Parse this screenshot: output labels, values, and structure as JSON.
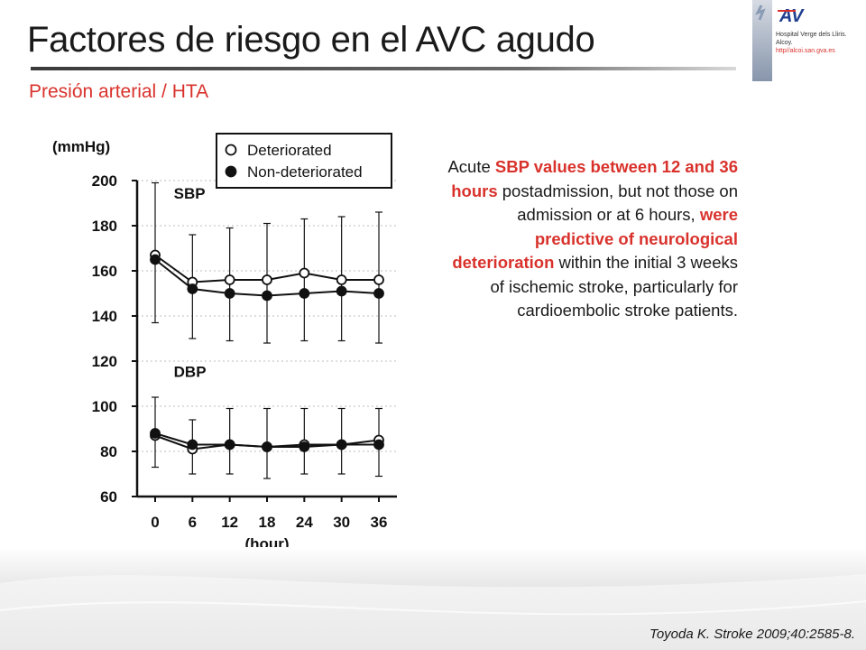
{
  "slide": {
    "title": "Factores de riesgo en el AVC agudo",
    "subtitle": "Presión arterial / HTA",
    "logo": {
      "line1": "Hospital Verge dels Lliris.",
      "line2": "Alcoy.",
      "url": "http//alcoi.san.gva.es"
    },
    "description": [
      {
        "text": "Acute ",
        "highlight": false
      },
      {
        "text": "SBP values between 12 and 36 hours",
        "highlight": true
      },
      {
        "text": " postadmission, but not those on admission or at 6 hours, ",
        "highlight": false
      },
      {
        "text": "were predictive of neurological deterioration",
        "highlight": true
      },
      {
        "text": " within the initial 3 weeks of ischemic stroke, particularly for cardioembolic stroke patients.",
        "highlight": false
      }
    ],
    "citation": "Toyoda K. Stroke 2009;40:2585-8.",
    "colors": {
      "accent": "#d9322c",
      "text": "#1a1a1a"
    }
  },
  "chart_data": {
    "type": "line",
    "x": [
      0,
      6,
      12,
      18,
      24,
      30,
      36
    ],
    "xticklabels": [
      "0",
      "6",
      "12",
      "18",
      "24",
      "30",
      "36"
    ],
    "xlabel": "(hour)",
    "ylabel": "(mmHg)",
    "yticks": [
      60,
      80,
      100,
      120,
      140,
      160,
      180,
      200
    ],
    "ylim": [
      60,
      200
    ],
    "legend": {
      "placement": "top",
      "entries": [
        "Deteriorated",
        "Non-deteriorated"
      ]
    },
    "panel_labels": [
      {
        "text": "SBP",
        "x": 3,
        "y": 192
      },
      {
        "text": "DBP",
        "x": 3,
        "y": 113
      }
    ],
    "grid": "horizontal-dotted",
    "series": [
      {
        "name": "Deteriorated",
        "group": "SBP",
        "marker": "open",
        "values": [
          167,
          155,
          156,
          156,
          159,
          156,
          156
        ],
        "error_upper": [
          199,
          176,
          179,
          181,
          183,
          184,
          186
        ],
        "error_lower": [
          137,
          130,
          129,
          128,
          129,
          129,
          128
        ]
      },
      {
        "name": "Non-deteriorated",
        "group": "SBP",
        "marker": "filled",
        "values": [
          165,
          152,
          150,
          149,
          150,
          151,
          150
        ]
      },
      {
        "name": "Deteriorated",
        "group": "DBP",
        "marker": "open",
        "values": [
          87,
          81,
          83,
          82,
          83,
          83,
          85
        ],
        "error_upper": [
          104,
          94,
          99,
          99,
          99,
          99,
          99
        ],
        "error_lower": [
          73,
          70,
          70,
          68,
          70,
          70,
          69
        ]
      },
      {
        "name": "Non-deteriorated",
        "group": "DBP",
        "marker": "filled",
        "values": [
          88,
          83,
          83,
          82,
          82,
          83,
          83
        ]
      }
    ]
  }
}
